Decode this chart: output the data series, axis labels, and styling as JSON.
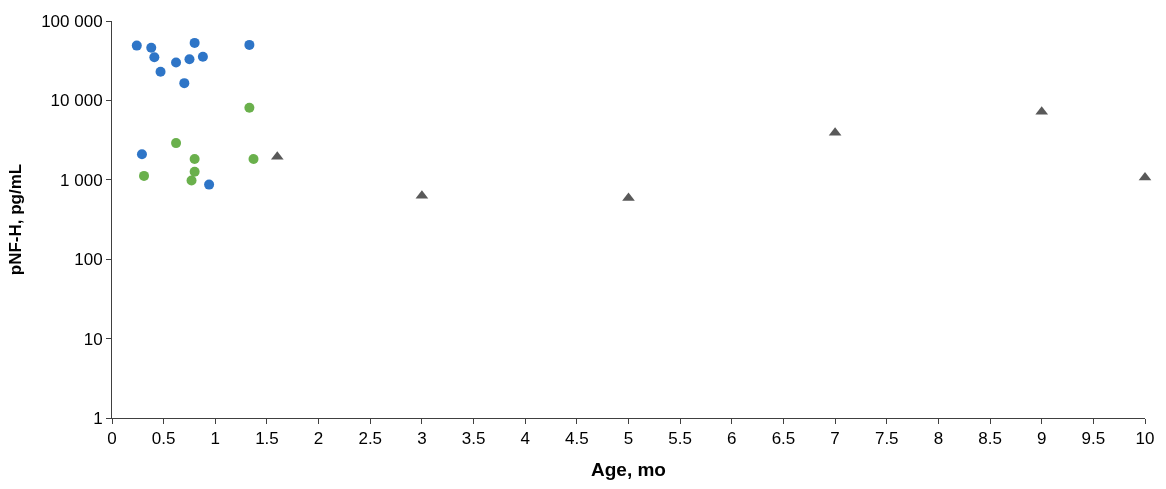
{
  "chart_data": {
    "type": "scatter",
    "xlabel": "Age, mo",
    "ylabel": "pNF-H, pg/mL",
    "log": "y",
    "xlim": [
      0,
      10
    ],
    "xticks": [
      0,
      {
        "value": 0.5,
        "label": "0.5"
      },
      1,
      {
        "value": 1.5,
        "label": "1.5"
      },
      2,
      {
        "value": 2.5,
        "label": "2.5"
      },
      3,
      {
        "value": 3.5,
        "label": "3.5"
      },
      4,
      {
        "value": 4.5,
        "label": "4.5"
      },
      5,
      {
        "value": 5.5,
        "label": "5.5"
      },
      6,
      {
        "value": 6.5,
        "label": "6.5"
      },
      7,
      {
        "value": 7.5,
        "label": "7.5"
      },
      8,
      {
        "value": 8.5,
        "label": "8.5"
      },
      9,
      {
        "value": 9.5,
        "label": "9.5"
      },
      10
    ],
    "ylim": [
      1,
      100000
    ],
    "yticks": [
      1,
      10,
      100,
      {
        "value": 1000,
        "label": "1 000"
      },
      {
        "value": 10000,
        "label": "10 000"
      },
      {
        "value": 100000,
        "label": "100 000"
      }
    ],
    "series": [
      {
        "color": "#2e75c7",
        "marker": "circle",
        "x": [
          0.24,
          0.38,
          0.41,
          0.47,
          0.62,
          0.7,
          0.75,
          0.8,
          0.88,
          1.33,
          0.94,
          0.29
        ],
        "values": [
          49000,
          46000,
          35000,
          23000,
          30000,
          16500,
          33000,
          53000,
          35500,
          50000,
          870,
          2100
        ]
      },
      {
        "color": "#6ab04c",
        "marker": "circle",
        "x": [
          0.31,
          0.62,
          0.8,
          0.8,
          0.77,
          1.33,
          1.37
        ],
        "values": [
          1120,
          2900,
          1830,
          1260,
          980,
          8100,
          1830
        ]
      },
      {
        "color": "#595959",
        "marker": "triangle",
        "x": [
          1.6,
          3,
          5,
          7,
          9,
          10
        ],
        "values": [
          1950,
          630,
          590,
          3900,
          7200,
          1070
        ]
      }
    ]
  }
}
